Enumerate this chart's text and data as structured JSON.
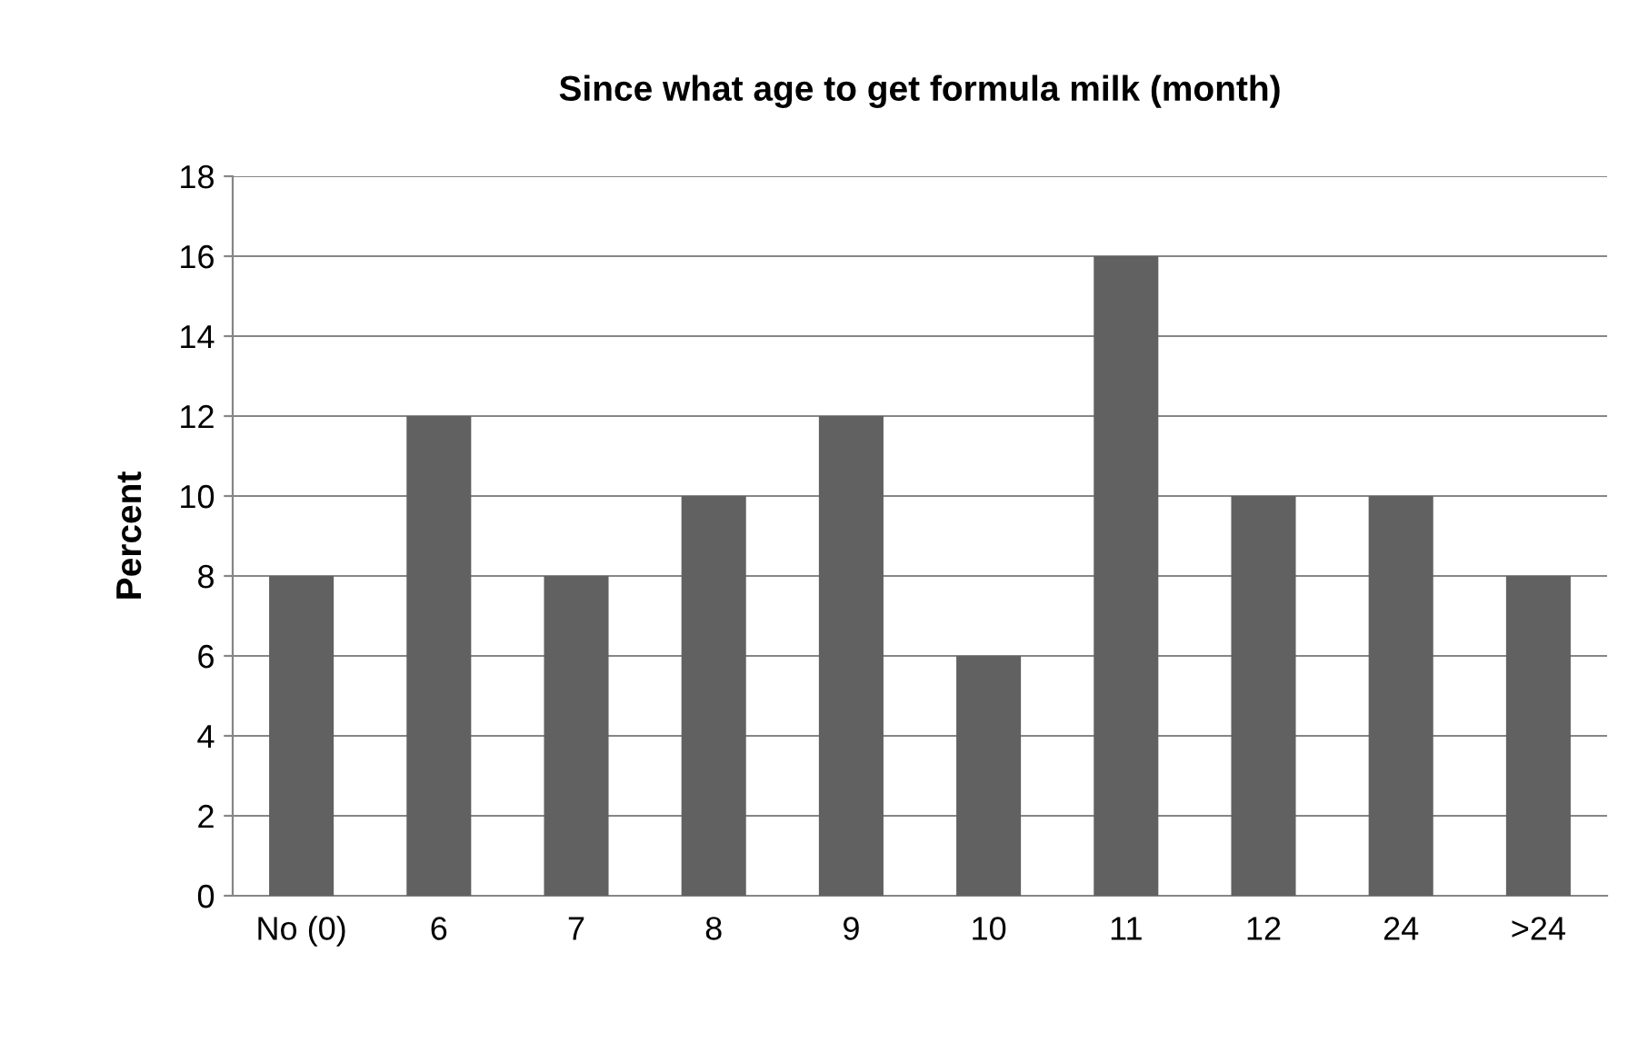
{
  "chart_data": {
    "type": "bar",
    "title": "Since what age to get formula milk (month)",
    "ylabel": "Percent",
    "categories": [
      "No (0)",
      "6",
      "7",
      "8",
      "9",
      "10",
      "11",
      "12",
      "24",
      ">24"
    ],
    "values": [
      8,
      12,
      8,
      10,
      12,
      6,
      16,
      10,
      10,
      8
    ],
    "color": "#616161",
    "ylim": [
      0,
      18
    ],
    "yticks": [
      0,
      2,
      4,
      6,
      8,
      10,
      12,
      14,
      16,
      18
    ],
    "grid": "y",
    "legend": false
  }
}
